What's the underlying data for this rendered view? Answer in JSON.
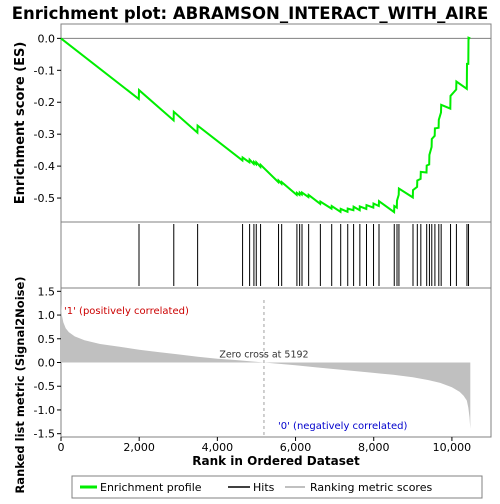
{
  "chart_data": {
    "type": "line",
    "title": "Enrichment plot: ABRAMSON_INTERACT_WITH_AIRE",
    "es_panel": {
      "ylabel": "Enrichment score (ES)",
      "ylim": [
        -0.575,
        0.045
      ],
      "yticks": [
        0.0,
        -0.1,
        -0.2,
        -0.3,
        -0.4,
        -0.5
      ],
      "tick_labels": [
        "0.0",
        "-0.1",
        "-0.2",
        "-0.3",
        "-0.4",
        "-0.5"
      ],
      "series": [
        {
          "name": "Enrichment profile",
          "color": "#00ee00",
          "x": [
            0,
            1990,
            1995,
            2880,
            2885,
            3490,
            3495,
            4640,
            4645,
            4820,
            4825,
            4930,
            4935,
            4990,
            4995,
            5100,
            5105,
            5560,
            5565,
            5640,
            5645,
            6030,
            6035,
            6100,
            6105,
            6160,
            6165,
            6330,
            6335,
            6630,
            6635,
            6920,
            6925,
            7150,
            7155,
            7330,
            7335,
            7480,
            7485,
            7640,
            7645,
            7810,
            7815,
            7990,
            7995,
            8130,
            8135,
            8520,
            8525,
            8590,
            8595,
            8640,
            8645,
            9000,
            9005,
            9110,
            9115,
            9200,
            9205,
            9350,
            9355,
            9420,
            9425,
            9480,
            9485,
            9560,
            9565,
            9660,
            9665,
            9720,
            9725,
            9960,
            9965,
            10110,
            10115,
            10380,
            10385,
            10420,
            10425,
            10470
          ],
          "y": [
            0.0,
            -0.19,
            -0.162,
            -0.257,
            -0.23,
            -0.295,
            -0.273,
            -0.382,
            -0.373,
            -0.388,
            -0.38,
            -0.393,
            -0.387,
            -0.394,
            -0.388,
            -0.402,
            -0.396,
            -0.45,
            -0.445,
            -0.455,
            -0.45,
            -0.49,
            -0.484,
            -0.49,
            -0.483,
            -0.489,
            -0.483,
            -0.497,
            -0.49,
            -0.518,
            -0.511,
            -0.533,
            -0.525,
            -0.543,
            -0.534,
            -0.543,
            -0.533,
            -0.538,
            -0.527,
            -0.538,
            -0.526,
            -0.534,
            -0.522,
            -0.53,
            -0.517,
            -0.525,
            -0.51,
            -0.544,
            -0.525,
            -0.53,
            -0.508,
            -0.49,
            -0.47,
            -0.498,
            -0.475,
            -0.465,
            -0.445,
            -0.44,
            -0.418,
            -0.42,
            -0.398,
            -0.395,
            -0.365,
            -0.34,
            -0.315,
            -0.305,
            -0.282,
            -0.28,
            -0.255,
            -0.232,
            -0.208,
            -0.22,
            -0.18,
            -0.16,
            -0.135,
            -0.158,
            -0.08,
            -0.08,
            0.002,
            0.0
          ]
        }
      ]
    },
    "hits_panel": {
      "label": "Hits",
      "hit_positions": [
        1995,
        2885,
        3495,
        4645,
        4825,
        4935,
        4995,
        5105,
        5565,
        5645,
        6035,
        6105,
        6165,
        6335,
        6635,
        6925,
        7155,
        7335,
        7485,
        7645,
        7815,
        7995,
        8135,
        8525,
        8595,
        8645,
        9005,
        9115,
        9205,
        9355,
        9425,
        9485,
        9565,
        9665,
        9725,
        9965,
        10115,
        10385,
        10425
      ]
    },
    "color_bar": {
      "segments": [
        {
          "start": 0,
          "end": 350,
          "color": "#e8001e"
        },
        {
          "start": 350,
          "end": 2000,
          "color": "#f03a48"
        },
        {
          "start": 2000,
          "end": 2900,
          "color": "#f5707a"
        },
        {
          "start": 2900,
          "end": 3950,
          "color": "#f9a0a8"
        },
        {
          "start": 3950,
          "end": 4850,
          "color": "#fac5ef"
        },
        {
          "start": 4850,
          "end": 5150,
          "color": "#f3e0f5"
        },
        {
          "start": 5150,
          "end": 5950,
          "color": "#e4e0f8"
        },
        {
          "start": 5950,
          "end": 6650,
          "color": "#d2cdf6"
        },
        {
          "start": 6650,
          "end": 7330,
          "color": "#bbb3f3"
        },
        {
          "start": 7330,
          "end": 8300,
          "color": "#8f84ef"
        },
        {
          "start": 8300,
          "end": 9050,
          "color": "#5f52e6"
        },
        {
          "start": 9050,
          "end": 9800,
          "color": "#3a26dc"
        },
        {
          "start": 9800,
          "end": 10470,
          "color": "#1d00c4"
        }
      ]
    },
    "metric_panel": {
      "ylabel": "Ranked list metric (Signal2Noise)",
      "xlabel": "Rank in Ordered Dataset",
      "xlim": [
        0,
        11000
      ],
      "xticks": [
        0,
        2000,
        4000,
        6000,
        8000,
        10000
      ],
      "xtick_labels": [
        "0",
        "2,000",
        "4,000",
        "6,000",
        "8,000",
        "10,000"
      ],
      "ylim": [
        -1.57,
        1.57
      ],
      "yticks": [
        1.5,
        1.0,
        0.5,
        0.0,
        -0.5,
        -1.0,
        -1.5
      ],
      "ytick_labels": [
        "1.5",
        "1.0",
        "0.5",
        "0.0",
        "-0.5",
        "-1.0",
        "-1.5"
      ],
      "metric_curve": {
        "rank": [
          0,
          20,
          60,
          120,
          200,
          350,
          600,
          1000,
          1500,
          2000,
          2500,
          3000,
          3500,
          4000,
          4500,
          5192,
          6000,
          6500,
          7000,
          7500,
          8000,
          8500,
          9000,
          9400,
          9700,
          10000,
          10200,
          10300,
          10380,
          10420,
          10450,
          10470
        ],
        "value": [
          1.25,
          1.0,
          0.85,
          0.72,
          0.64,
          0.55,
          0.47,
          0.39,
          0.33,
          0.27,
          0.22,
          0.17,
          0.12,
          0.08,
          0.05,
          0.0,
          -0.06,
          -0.1,
          -0.14,
          -0.18,
          -0.22,
          -0.26,
          -0.31,
          -0.37,
          -0.43,
          -0.52,
          -0.62,
          -0.7,
          -0.8,
          -0.95,
          -1.15,
          -1.4
        ]
      },
      "zero_cross_label": "Zero cross at 5192",
      "zero_cross_rank": 5192,
      "positive_label": "'1' (positively correlated)",
      "negative_label": "'0' (negatively correlated)"
    },
    "legend": [
      {
        "label": "Enrichment profile",
        "color": "#00ee00"
      },
      {
        "label": "Hits",
        "color": "#000000"
      },
      {
        "label": "Ranking metric scores",
        "color": "#c0c0c0"
      }
    ]
  }
}
